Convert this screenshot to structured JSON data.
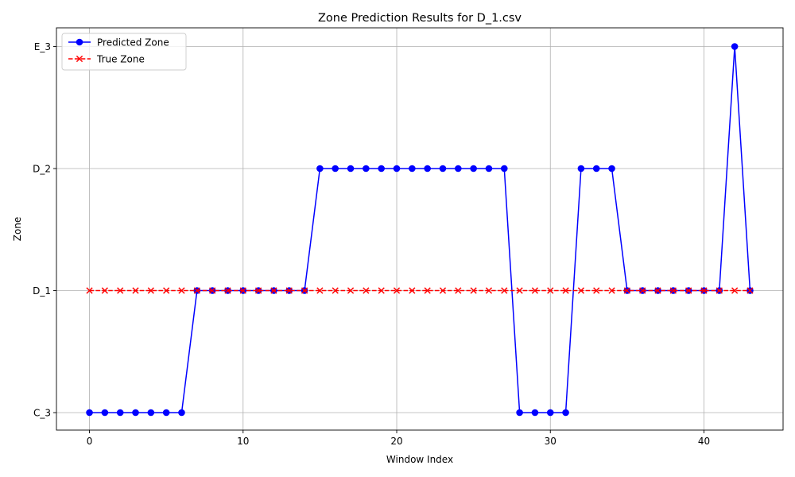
{
  "chart_data": {
    "type": "line",
    "title": "Zone Prediction Results for D_1.csv",
    "xlabel": "Window Index",
    "ylabel": "Zone",
    "x_ticks": [
      0,
      10,
      20,
      30,
      40
    ],
    "y_categories": [
      "C_3",
      "D_1",
      "D_2",
      "E_3"
    ],
    "xlim": [
      -2.15,
      45.15
    ],
    "grid": true,
    "legend_position": "top-left",
    "series": [
      {
        "name": "Predicted Zone",
        "color": "#0000ff",
        "marker": "circle",
        "linestyle": "solid",
        "x": [
          0,
          1,
          2,
          3,
          4,
          5,
          6,
          7,
          8,
          9,
          10,
          11,
          12,
          13,
          14,
          15,
          16,
          17,
          18,
          19,
          20,
          21,
          22,
          23,
          24,
          25,
          26,
          27,
          28,
          29,
          30,
          31,
          32,
          33,
          34,
          35,
          36,
          37,
          38,
          39,
          40,
          41,
          42,
          43
        ],
        "values": [
          "C_3",
          "C_3",
          "C_3",
          "C_3",
          "C_3",
          "C_3",
          "C_3",
          "D_1",
          "D_1",
          "D_1",
          "D_1",
          "D_1",
          "D_1",
          "D_1",
          "D_1",
          "D_2",
          "D_2",
          "D_2",
          "D_2",
          "D_2",
          "D_2",
          "D_2",
          "D_2",
          "D_2",
          "D_2",
          "D_2",
          "D_2",
          "D_2",
          "C_3",
          "C_3",
          "C_3",
          "C_3",
          "D_2",
          "D_2",
          "D_2",
          "D_1",
          "D_1",
          "D_1",
          "D_1",
          "D_1",
          "D_1",
          "D_1",
          "E_3",
          "D_1"
        ]
      },
      {
        "name": "True Zone",
        "color": "#ff0000",
        "marker": "x",
        "linestyle": "dashed",
        "x": [
          0,
          1,
          2,
          3,
          4,
          5,
          6,
          7,
          8,
          9,
          10,
          11,
          12,
          13,
          14,
          15,
          16,
          17,
          18,
          19,
          20,
          21,
          22,
          23,
          24,
          25,
          26,
          27,
          28,
          29,
          30,
          31,
          32,
          33,
          34,
          35,
          36,
          37,
          38,
          39,
          40,
          41,
          42,
          43
        ],
        "values": [
          "D_1",
          "D_1",
          "D_1",
          "D_1",
          "D_1",
          "D_1",
          "D_1",
          "D_1",
          "D_1",
          "D_1",
          "D_1",
          "D_1",
          "D_1",
          "D_1",
          "D_1",
          "D_1",
          "D_1",
          "D_1",
          "D_1",
          "D_1",
          "D_1",
          "D_1",
          "D_1",
          "D_1",
          "D_1",
          "D_1",
          "D_1",
          "D_1",
          "D_1",
          "D_1",
          "D_1",
          "D_1",
          "D_1",
          "D_1",
          "D_1",
          "D_1",
          "D_1",
          "D_1",
          "D_1",
          "D_1",
          "D_1",
          "D_1",
          "D_1",
          "D_1"
        ]
      }
    ]
  }
}
